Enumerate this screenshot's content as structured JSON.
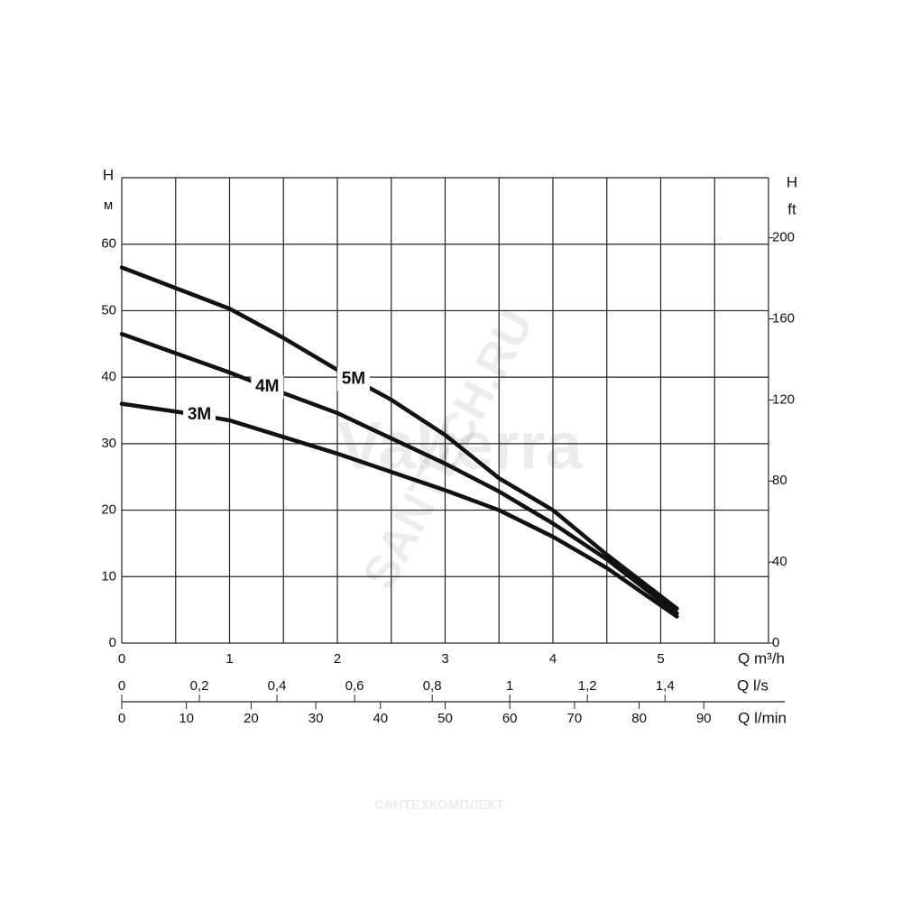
{
  "chart_data": {
    "type": "line",
    "y_title": "H",
    "y_unit": "м",
    "y2_title": "H",
    "y2_unit": "ft",
    "x_title": "Q m³/h",
    "xlim": [
      0,
      6
    ],
    "xticks": [
      0,
      1,
      2,
      3,
      4,
      5
    ],
    "xgrid": [
      0,
      0.5,
      1,
      1.5,
      2,
      2.5,
      3,
      3.5,
      4,
      4.5,
      5,
      5.5,
      6
    ],
    "ylim": [
      0,
      70
    ],
    "yticks": [
      0,
      10,
      20,
      30,
      40,
      50,
      60
    ],
    "ygrid": [
      0,
      10,
      20,
      30,
      40,
      50,
      60,
      70
    ],
    "y2lim": [
      0,
      229.66
    ],
    "y2ticks": [
      0,
      40,
      80,
      120,
      160,
      200
    ],
    "x_ls": {
      "title": "Q l/s",
      "lim": [
        0,
        1.6667
      ],
      "ticks": [
        0,
        {
          "value": 0.2,
          "label": "0,2"
        },
        {
          "value": 0.4,
          "label": "0,4"
        },
        {
          "value": 0.6,
          "label": "0,6"
        },
        {
          "value": 0.8,
          "label": "0,8"
        },
        1,
        {
          "value": 1.2,
          "label": "1,2"
        },
        {
          "value": 1.4,
          "label": "1,4"
        }
      ]
    },
    "x_lmin": {
      "title": "Q l/min",
      "lim": [
        0,
        100
      ],
      "ticks": [
        0,
        10,
        20,
        30,
        40,
        50,
        60,
        70,
        80,
        90
      ]
    },
    "series": [
      {
        "name": "3M",
        "color": "#111111",
        "x": [
          0,
          0.72,
          1,
          2,
          3,
          3.5,
          4,
          4.5,
          5.15
        ],
        "values": [
          36,
          34.3,
          33.5,
          28.5,
          23,
          20,
          16,
          11.3,
          4
        ]
      },
      {
        "name": "4M",
        "color": "#111111",
        "x": [
          0,
          1,
          1.35,
          2,
          3,
          3.5,
          4,
          4.5,
          5.15
        ],
        "values": [
          46.5,
          40.7,
          38.5,
          34.6,
          27,
          22.8,
          18,
          12.6,
          4.5
        ]
      },
      {
        "name": "5M",
        "color": "#111111",
        "x": [
          0,
          1,
          1.5,
          2,
          2.15,
          2.5,
          3,
          3.5,
          4,
          4.5,
          5.15
        ],
        "values": [
          56.5,
          50.3,
          45.9,
          41.1,
          39.7,
          36.6,
          31.3,
          24.8,
          20,
          13.3,
          5.2
        ]
      }
    ],
    "watermarks": [
      "Valterra",
      "SANTECH.RU",
      "САНТЕХКОМПЛЕКТ"
    ]
  }
}
